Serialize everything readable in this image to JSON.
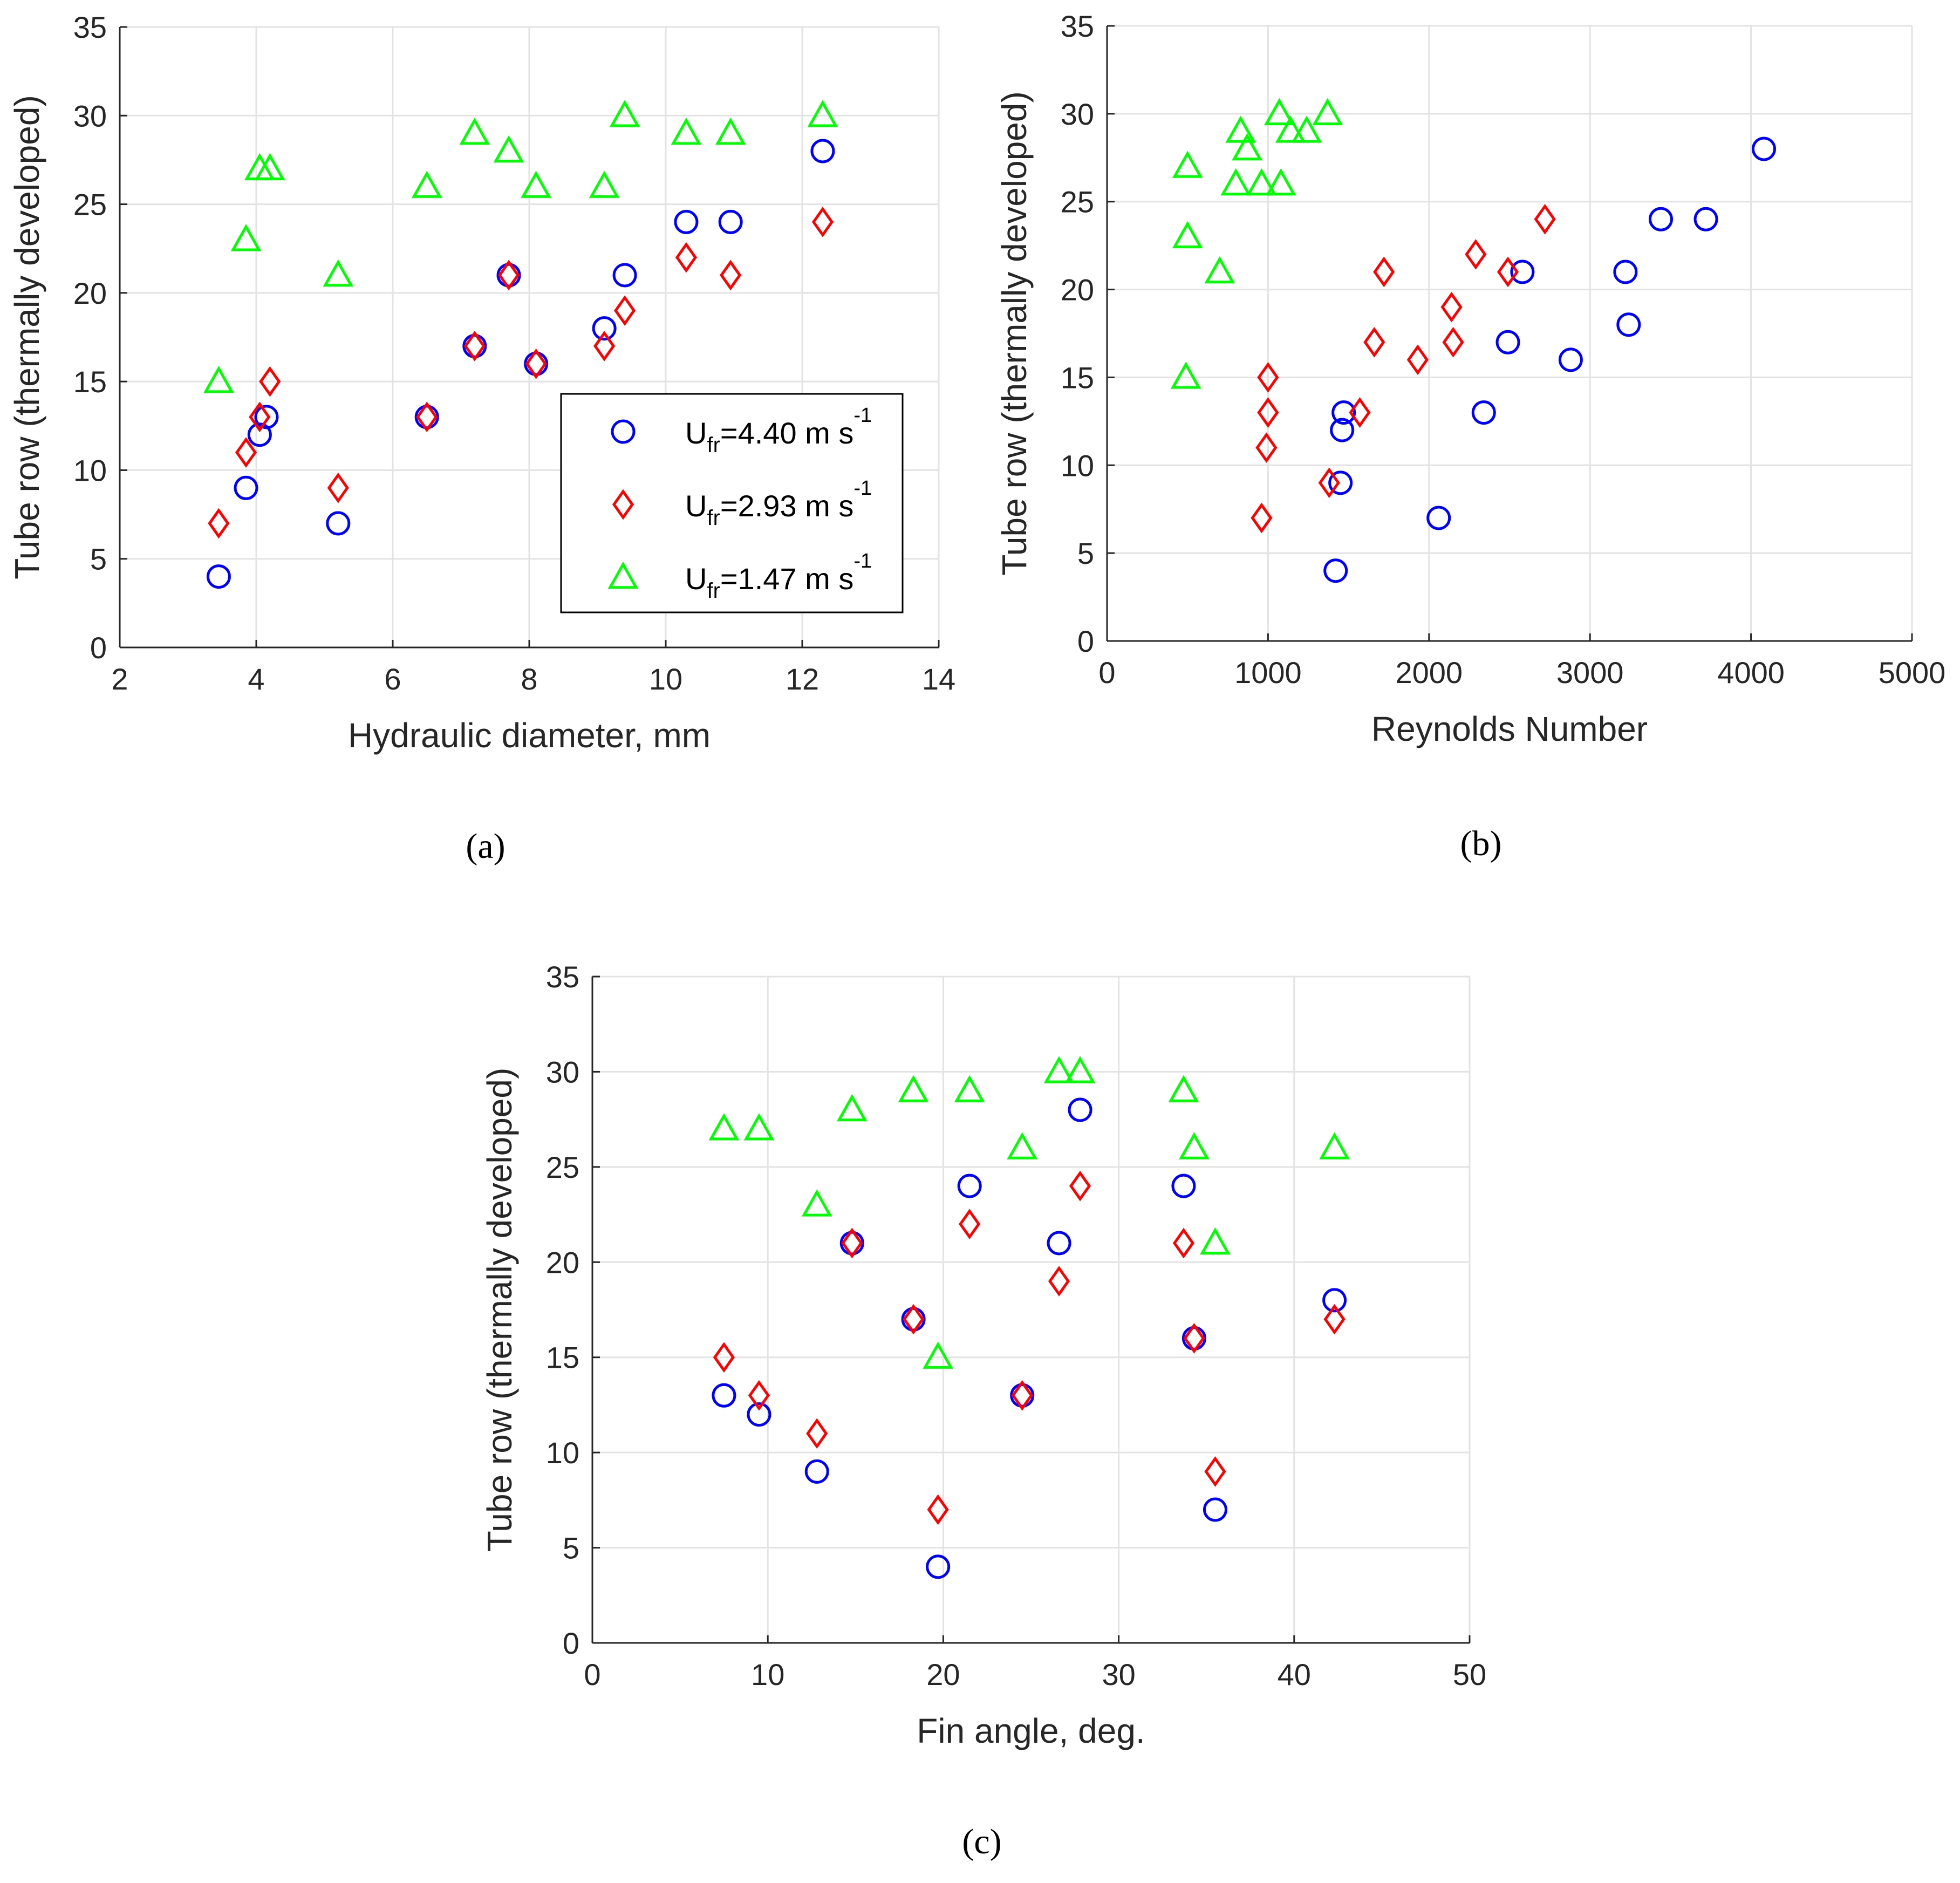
{
  "colors": {
    "series_1": "#0000ff",
    "series_2": "#ff0000",
    "series_3": "#00ff00",
    "grid": "#e3e3e3",
    "axis": "#262626"
  },
  "legend": {
    "placement": "inside-lower-right (panel a)",
    "entries": [
      {
        "marker": "circle",
        "prefix": "U",
        "sub": "fr",
        "middle": "=4.40 m s",
        "sup": "-1"
      },
      {
        "marker": "diamond",
        "prefix": "U",
        "sub": "fr",
        "middle": "=2.93 m s",
        "sup": "-1"
      },
      {
        "marker": "triangle",
        "prefix": "U",
        "sub": "fr",
        "middle": "=1.47 m s",
        "sup": "-1"
      }
    ]
  },
  "chart_data": [
    {
      "panel_label": "(a)",
      "panel_letter": "a",
      "type": "scatter",
      "xlabel": "Hydraulic diameter, mm",
      "ylabel": "Tube row (thermally developed)",
      "xlim": [
        2,
        14
      ],
      "ylim": [
        0,
        35
      ],
      "xticks": [
        "2",
        "4",
        "6",
        "8",
        "10",
        "12",
        "14"
      ],
      "yticks": [
        "0",
        "5",
        "10",
        "15",
        "20",
        "25",
        "30",
        "35"
      ],
      "grid": true,
      "legend": true,
      "series": [
        {
          "name": "U_fr=4.40 m s^-1",
          "marker": "circle",
          "color": "#0000ff",
          "points": [
            [
              3.45,
              4
            ],
            [
              3.85,
              9
            ],
            [
              4.05,
              12
            ],
            [
              4.15,
              13
            ],
            [
              5.2,
              7
            ],
            [
              6.5,
              13
            ],
            [
              7.2,
              17
            ],
            [
              7.7,
              21
            ],
            [
              8.1,
              16
            ],
            [
              9.1,
              18
            ],
            [
              9.4,
              21
            ],
            [
              10.3,
              24
            ],
            [
              10.95,
              24
            ],
            [
              12.3,
              28
            ]
          ]
        },
        {
          "name": "U_fr=2.93 m s^-1",
          "marker": "diamond",
          "color": "#ff0000",
          "points": [
            [
              3.45,
              7
            ],
            [
              3.85,
              11
            ],
            [
              4.05,
              13
            ],
            [
              4.2,
              15
            ],
            [
              5.2,
              9
            ],
            [
              6.5,
              13
            ],
            [
              7.2,
              17
            ],
            [
              7.7,
              21
            ],
            [
              8.1,
              16
            ],
            [
              9.1,
              17
            ],
            [
              9.4,
              19
            ],
            [
              10.3,
              22
            ],
            [
              10.95,
              21
            ],
            [
              12.3,
              24
            ]
          ]
        },
        {
          "name": "U_fr=1.47 m s^-1",
          "marker": "triangle",
          "color": "#00ff00",
          "points": [
            [
              3.45,
              15
            ],
            [
              3.85,
              23
            ],
            [
              4.05,
              27
            ],
            [
              4.2,
              27
            ],
            [
              5.2,
              21
            ],
            [
              6.5,
              26
            ],
            [
              7.2,
              29
            ],
            [
              7.7,
              28
            ],
            [
              8.1,
              26
            ],
            [
              9.1,
              26
            ],
            [
              9.4,
              30
            ],
            [
              10.3,
              29
            ],
            [
              10.95,
              29
            ],
            [
              12.3,
              30
            ]
          ]
        }
      ]
    },
    {
      "panel_label": "(b)",
      "panel_letter": "b",
      "type": "scatter",
      "xlabel": "Reynolds Number",
      "ylabel": "Tube row (thermally developed)",
      "xlim": [
        0,
        5000
      ],
      "ylim": [
        0,
        35
      ],
      "xticks": [
        "0",
        "1000",
        "2000",
        "3000",
        "4000",
        "5000"
      ],
      "yticks": [
        "0",
        "5",
        "10",
        "15",
        "20",
        "25",
        "30",
        "35"
      ],
      "grid": true,
      "legend": false,
      "series": [
        {
          "name": "U_fr=4.40 m s^-1",
          "marker": "circle",
          "color": "#0000ff",
          "points": [
            [
              1420,
              4
            ],
            [
              2060,
              7
            ],
            [
              1450,
              9
            ],
            [
              1460,
              12
            ],
            [
              1470,
              13
            ],
            [
              2340,
              13
            ],
            [
              2490,
              17
            ],
            [
              2580,
              21
            ],
            [
              2880,
              16
            ],
            [
              3220,
              21
            ],
            [
              3240,
              18
            ],
            [
              3440,
              24
            ],
            [
              3720,
              24
            ],
            [
              4080,
              28
            ]
          ]
        },
        {
          "name": "U_fr=2.93 m s^-1",
          "marker": "diamond",
          "color": "#ff0000",
          "points": [
            [
              960,
              7
            ],
            [
              990,
              11
            ],
            [
              1000,
              13
            ],
            [
              1000,
              15
            ],
            [
              1380,
              9
            ],
            [
              1570,
              13
            ],
            [
              1660,
              17
            ],
            [
              1720,
              21
            ],
            [
              1930,
              16
            ],
            [
              2140,
              19
            ],
            [
              2150,
              17
            ],
            [
              2290,
              22
            ],
            [
              2490,
              21
            ],
            [
              2720,
              24
            ]
          ]
        },
        {
          "name": "U_fr=1.47 m s^-1",
          "marker": "triangle",
          "color": "#00ff00",
          "points": [
            [
              490,
              15
            ],
            [
              500,
              23
            ],
            [
              500,
              27
            ],
            [
              700,
              21
            ],
            [
              800,
              26
            ],
            [
              830,
              29
            ],
            [
              870,
              28
            ],
            [
              960,
              26
            ],
            [
              1070,
              30
            ],
            [
              1080,
              26
            ],
            [
              1140,
              29
            ],
            [
              1240,
              29
            ],
            [
              1370,
              30
            ]
          ]
        }
      ]
    },
    {
      "panel_label": "(c)",
      "panel_letter": "c",
      "type": "scatter",
      "xlabel": "Fin angle, deg.",
      "ylabel": "Tube row (thermally developed)",
      "xlim": [
        0,
        50
      ],
      "ylim": [
        0,
        35
      ],
      "xticks": [
        "0",
        "10",
        "20",
        "30",
        "40",
        "50"
      ],
      "yticks": [
        "0",
        "5",
        "10",
        "15",
        "20",
        "25",
        "30",
        "35"
      ],
      "grid": true,
      "legend": false,
      "series": [
        {
          "name": "U_fr=4.40 m s^-1",
          "marker": "circle",
          "color": "#0000ff",
          "points": [
            [
              7.5,
              13
            ],
            [
              9.5,
              12
            ],
            [
              12.8,
              9
            ],
            [
              14.8,
              21
            ],
            [
              18.3,
              17
            ],
            [
              19.7,
              4
            ],
            [
              21.5,
              24
            ],
            [
              24.5,
              13
            ],
            [
              26.6,
              21
            ],
            [
              27.8,
              28
            ],
            [
              33.7,
              24
            ],
            [
              34.3,
              16
            ],
            [
              35.5,
              7
            ],
            [
              42.3,
              18
            ]
          ]
        },
        {
          "name": "U_fr=2.93 m s^-1",
          "marker": "diamond",
          "color": "#ff0000",
          "points": [
            [
              7.5,
              15
            ],
            [
              9.5,
              13
            ],
            [
              12.8,
              11
            ],
            [
              14.8,
              21
            ],
            [
              18.3,
              17
            ],
            [
              19.7,
              7
            ],
            [
              21.5,
              22
            ],
            [
              24.5,
              13
            ],
            [
              26.6,
              19
            ],
            [
              27.8,
              24
            ],
            [
              33.7,
              21
            ],
            [
              34.3,
              16
            ],
            [
              35.5,
              9
            ],
            [
              42.3,
              17
            ]
          ]
        },
        {
          "name": "U_fr=1.47 m s^-1",
          "marker": "triangle",
          "color": "#00ff00",
          "points": [
            [
              7.5,
              27
            ],
            [
              9.5,
              27
            ],
            [
              12.8,
              23
            ],
            [
              14.8,
              28
            ],
            [
              18.3,
              29
            ],
            [
              19.7,
              15
            ],
            [
              21.5,
              29
            ],
            [
              24.5,
              26
            ],
            [
              26.6,
              30
            ],
            [
              27.8,
              30
            ],
            [
              33.7,
              29
            ],
            [
              34.3,
              26
            ],
            [
              35.5,
              21
            ],
            [
              42.3,
              26
            ]
          ]
        }
      ]
    }
  ]
}
